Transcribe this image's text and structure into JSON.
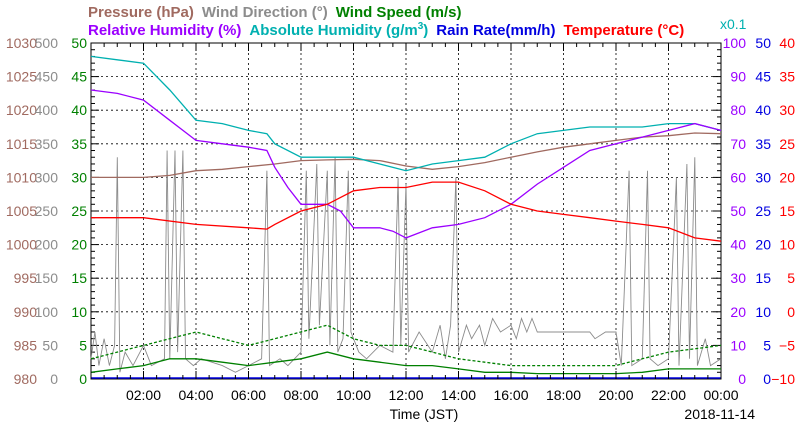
{
  "chart_data": {
    "type": "line",
    "legend_row1": [
      {
        "key": "pressure",
        "text": "Pressure (hPa)",
        "color": "#a06a60"
      },
      {
        "key": "wind_dir",
        "text": "Wind Direction (°)",
        "color": "#8c8c8c"
      },
      {
        "key": "wind_speed",
        "text": "Wind Speed (m/s)",
        "color": "#008000"
      }
    ],
    "legend_row2": [
      {
        "key": "rh",
        "text": "Relative Humidity (%)",
        "color": "#9b00ff"
      },
      {
        "key": "ah_pre",
        "text": "Absolute Humidity (g/m",
        "color": "#00b0b0"
      },
      {
        "key": "ah_sup",
        "text": "3",
        "color": "#00b0b0"
      },
      {
        "key": "ah_post",
        "text": ")",
        "color": "#00b0b0"
      },
      {
        "key": "rain",
        "text": "Rain Rate(mm/h)",
        "color": "#0000e0"
      },
      {
        "key": "temp",
        "text": "Temperature (°C)",
        "color": "#ff0000"
      }
    ],
    "ah_scale_note": "x0.1",
    "xlabel": "Time (JST)",
    "date": "2018-11-14",
    "x_ticks": [
      "02:00",
      "04:00",
      "06:00",
      "08:00",
      "10:00",
      "12:00",
      "14:00",
      "16:00",
      "18:00",
      "20:00",
      "22:00",
      "00:00"
    ],
    "x_range": [
      0,
      24
    ],
    "axes": {
      "pressure": {
        "ticks": [
          "1030",
          "1025",
          "1020",
          "1015",
          "1010",
          "1005",
          "1000",
          "995",
          "990",
          "985",
          "980"
        ],
        "range": [
          980,
          1030
        ],
        "color": "#a06a60"
      },
      "wind_dir": {
        "ticks": [
          "500",
          "450",
          "400",
          "350",
          "300",
          "250",
          "200",
          "150",
          "100",
          "50",
          "0"
        ],
        "range": [
          0,
          500
        ],
        "color": "#8c8c8c"
      },
      "wind_speed": {
        "ticks": [
          "50",
          "45",
          "40",
          "35",
          "30",
          "25",
          "20",
          "15",
          "10",
          "5",
          "0"
        ],
        "range": [
          0,
          50
        ],
        "color": "#008000"
      },
      "rh": {
        "ticks": [
          "100",
          "90",
          "80",
          "70",
          "60",
          "50",
          "40",
          "30",
          "20",
          "10",
          "0"
        ],
        "range": [
          0,
          100
        ],
        "color": "#9b00ff"
      },
      "rain": {
        "ticks": [
          "50",
          "45",
          "40",
          "35",
          "30",
          "25",
          "20",
          "15",
          "10",
          "5",
          "0"
        ],
        "range": [
          0,
          50
        ],
        "color": "#0000e0"
      },
      "temp": {
        "ticks": [
          "40",
          "35",
          "30",
          "25",
          "20",
          "15",
          "10",
          "5",
          "0",
          "−5",
          "−10"
        ],
        "range": [
          -10,
          40
        ],
        "color": "#ff0000"
      }
    },
    "series": [
      {
        "name": "Pressure (hPa)",
        "key": "pressure",
        "color": "#a06a60",
        "points": [
          [
            0,
            1010
          ],
          [
            1,
            1010
          ],
          [
            2,
            1010
          ],
          [
            3,
            1010.3
          ],
          [
            4,
            1011
          ],
          [
            5,
            1011.2
          ],
          [
            6,
            1011.6
          ],
          [
            7,
            1012
          ],
          [
            8,
            1012.5
          ],
          [
            9,
            1012.6
          ],
          [
            10,
            1012.7
          ],
          [
            11,
            1012.5
          ],
          [
            12,
            1011.7
          ],
          [
            13,
            1011.2
          ],
          [
            14,
            1011.6
          ],
          [
            15,
            1012.2
          ],
          [
            16,
            1013
          ],
          [
            17,
            1013.8
          ],
          [
            18,
            1014.5
          ],
          [
            19,
            1015
          ],
          [
            20,
            1015.5
          ],
          [
            21,
            1016
          ],
          [
            22,
            1016.2
          ],
          [
            23,
            1016.6
          ],
          [
            24,
            1016.5
          ]
        ]
      },
      {
        "name": "Relative Humidity (%)",
        "key": "rh",
        "color": "#9b00ff",
        "points": [
          [
            0,
            86
          ],
          [
            1,
            85
          ],
          [
            2,
            83
          ],
          [
            3,
            77
          ],
          [
            4,
            71
          ],
          [
            5,
            70
          ],
          [
            6,
            69
          ],
          [
            6.7,
            68
          ],
          [
            7,
            63
          ],
          [
            7.5,
            57
          ],
          [
            8,
            52
          ],
          [
            9,
            52
          ],
          [
            9.5,
            50
          ],
          [
            10,
            45
          ],
          [
            11,
            45
          ],
          [
            11.5,
            44
          ],
          [
            12,
            42
          ],
          [
            13,
            45
          ],
          [
            14,
            46
          ],
          [
            15,
            48
          ],
          [
            16,
            52
          ],
          [
            17,
            58
          ],
          [
            18,
            63
          ],
          [
            19,
            68
          ],
          [
            20,
            70
          ],
          [
            21,
            72
          ],
          [
            22,
            74
          ],
          [
            23,
            76
          ],
          [
            24,
            74
          ]
        ]
      },
      {
        "name": "Absolute Humidity (g/m3) x0.1",
        "key": "ah",
        "color": "#00b0b0",
        "points": [
          [
            0,
            96
          ],
          [
            1,
            95
          ],
          [
            2,
            94
          ],
          [
            3,
            86
          ],
          [
            4,
            77
          ],
          [
            5,
            76
          ],
          [
            6,
            74
          ],
          [
            6.7,
            73
          ],
          [
            7,
            70
          ],
          [
            8,
            66
          ],
          [
            9,
            66
          ],
          [
            10,
            66
          ],
          [
            11,
            64
          ],
          [
            12,
            62
          ],
          [
            13,
            64
          ],
          [
            14,
            65
          ],
          [
            15,
            66
          ],
          [
            16,
            70
          ],
          [
            17,
            73
          ],
          [
            18,
            74
          ],
          [
            19,
            75
          ],
          [
            20,
            75
          ],
          [
            21,
            75
          ],
          [
            22,
            76
          ],
          [
            23,
            76
          ],
          [
            24,
            74
          ]
        ]
      },
      {
        "name": "Temperature (°C)",
        "key": "temp",
        "color": "#ff0000",
        "points": [
          [
            0,
            14
          ],
          [
            2,
            14
          ],
          [
            4,
            13
          ],
          [
            6,
            12.5
          ],
          [
            6.7,
            12.3
          ],
          [
            7,
            13
          ],
          [
            8,
            15
          ],
          [
            9,
            16
          ],
          [
            10,
            18
          ],
          [
            11,
            18.5
          ],
          [
            12,
            18.5
          ],
          [
            13,
            19.3
          ],
          [
            14,
            19.3
          ],
          [
            15,
            18
          ],
          [
            16,
            16
          ],
          [
            17,
            15
          ],
          [
            18,
            14.5
          ],
          [
            19,
            14
          ],
          [
            20,
            13.5
          ],
          [
            21,
            13
          ],
          [
            22,
            12.5
          ],
          [
            23,
            11
          ],
          [
            24,
            10.5
          ]
        ]
      },
      {
        "name": "Wind Direction (°)",
        "key": "wind_dir",
        "color": "#8c8c8c",
        "points": [
          [
            0,
            30
          ],
          [
            0.15,
            70
          ],
          [
            0.3,
            20
          ],
          [
            0.5,
            60
          ],
          [
            0.7,
            20
          ],
          [
            0.9,
            50
          ],
          [
            1,
            330
          ],
          [
            1.1,
            10
          ],
          [
            1.3,
            40
          ],
          [
            1.6,
            20
          ],
          [
            2,
            50
          ],
          [
            2.3,
            20
          ],
          [
            2.8,
            30
          ],
          [
            2.9,
            340
          ],
          [
            3,
            30
          ],
          [
            3.2,
            340
          ],
          [
            3.3,
            40
          ],
          [
            3.5,
            340
          ],
          [
            3.6,
            30
          ],
          [
            3.9,
            20
          ],
          [
            4.2,
            30
          ],
          [
            5,
            20
          ],
          [
            5.5,
            10
          ],
          [
            6,
            20
          ],
          [
            6.5,
            30
          ],
          [
            6.7,
            310
          ],
          [
            6.8,
            20
          ],
          [
            7.2,
            30
          ],
          [
            7.5,
            20
          ],
          [
            8,
            40
          ],
          [
            8.2,
            310
          ],
          [
            8.3,
            60
          ],
          [
            8.6,
            320
          ],
          [
            8.7,
            80
          ],
          [
            9,
            310
          ],
          [
            9.1,
            50
          ],
          [
            9.3,
            330
          ],
          [
            9.4,
            40
          ],
          [
            9.6,
            60
          ],
          [
            9.8,
            310
          ],
          [
            9.9,
            70
          ],
          [
            10.2,
            40
          ],
          [
            10.5,
            30
          ],
          [
            11,
            50
          ],
          [
            11.5,
            40
          ],
          [
            11.7,
            300
          ],
          [
            11.8,
            50
          ],
          [
            12,
            290
          ],
          [
            12.1,
            40
          ],
          [
            12.5,
            70
          ],
          [
            13,
            40
          ],
          [
            13.3,
            80
          ],
          [
            13.5,
            30
          ],
          [
            13.7,
            80
          ],
          [
            13.9,
            300
          ],
          [
            14,
            40
          ],
          [
            14.3,
            80
          ],
          [
            14.5,
            60
          ],
          [
            14.8,
            80
          ],
          [
            15,
            50
          ],
          [
            15.3,
            90
          ],
          [
            15.6,
            70
          ],
          [
            16,
            80
          ],
          [
            16.2,
            60
          ],
          [
            16.4,
            90
          ],
          [
            16.6,
            70
          ],
          [
            16.8,
            90
          ],
          [
            17,
            70
          ],
          [
            18,
            70
          ],
          [
            19,
            70
          ],
          [
            19.2,
            60
          ],
          [
            19.6,
            70
          ],
          [
            20,
            70
          ],
          [
            20.2,
            20
          ],
          [
            20.5,
            310
          ],
          [
            20.6,
            20
          ],
          [
            21,
            30
          ],
          [
            21.2,
            310
          ],
          [
            21.3,
            30
          ],
          [
            21.6,
            20
          ],
          [
            22,
            30
          ],
          [
            22.3,
            300
          ],
          [
            22.4,
            20
          ],
          [
            22.7,
            320
          ],
          [
            22.8,
            30
          ],
          [
            23,
            330
          ],
          [
            23.1,
            20
          ],
          [
            23.4,
            60
          ],
          [
            23.6,
            20
          ],
          [
            24,
            30
          ]
        ]
      },
      {
        "name": "Wind Speed (m/s)",
        "key": "wind_speed",
        "color": "#008000",
        "points": [
          [
            0,
            1
          ],
          [
            1,
            1.5
          ],
          [
            2,
            2
          ],
          [
            3,
            3
          ],
          [
            4,
            3
          ],
          [
            5,
            2.5
          ],
          [
            6,
            2
          ],
          [
            7,
            2.5
          ],
          [
            8,
            3
          ],
          [
            9,
            4
          ],
          [
            10,
            3
          ],
          [
            11,
            2.5
          ],
          [
            12,
            2
          ],
          [
            13,
            2
          ],
          [
            14,
            1.5
          ],
          [
            15,
            1
          ],
          [
            16,
            1
          ],
          [
            17,
            0.8
          ],
          [
            18,
            0.8
          ],
          [
            19,
            0.8
          ],
          [
            20,
            0.8
          ],
          [
            21,
            1
          ],
          [
            22,
            1.5
          ],
          [
            23,
            1.5
          ],
          [
            24,
            1.5
          ]
        ]
      },
      {
        "name": "Wind Speed gust (m/s)",
        "key": "wind_gust",
        "color": "#008000",
        "points": [
          [
            0,
            3
          ],
          [
            1,
            4
          ],
          [
            2,
            5
          ],
          [
            3,
            6
          ],
          [
            4,
            7
          ],
          [
            5,
            6
          ],
          [
            6,
            5
          ],
          [
            7,
            6
          ],
          [
            8,
            7
          ],
          [
            9,
            8
          ],
          [
            10,
            6
          ],
          [
            11,
            5
          ],
          [
            12,
            5
          ],
          [
            13,
            4
          ],
          [
            14,
            3
          ],
          [
            15,
            2.5
          ],
          [
            16,
            2
          ],
          [
            17,
            2
          ],
          [
            18,
            2
          ],
          [
            19,
            2
          ],
          [
            20,
            2
          ],
          [
            21,
            3
          ],
          [
            22,
            4
          ],
          [
            23,
            4.5
          ],
          [
            24,
            5
          ]
        ]
      }
    ]
  }
}
